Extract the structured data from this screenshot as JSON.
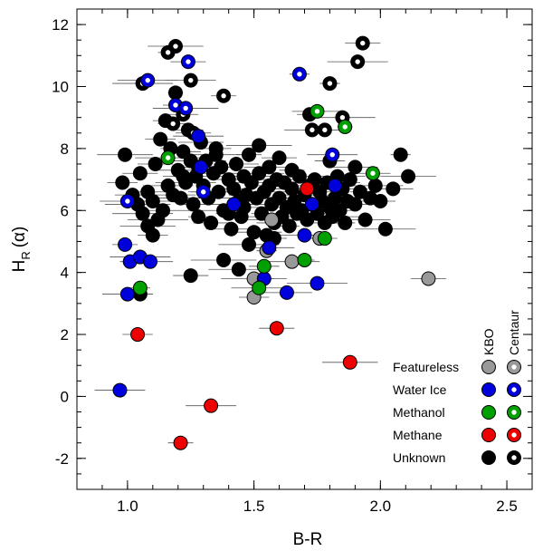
{
  "chart_data": {
    "type": "scatter",
    "title": "",
    "xlabel": "B-R",
    "ylabel": {
      "main": "H",
      "sub": "R",
      "tail": "(α)"
    },
    "xlim": [
      0.8,
      2.6
    ],
    "ylim": [
      -3,
      12.5
    ],
    "xticks": [
      1.0,
      1.5,
      2.0,
      2.5
    ],
    "xtick_labels": [
      "1.0",
      "1.5",
      "2.0",
      "2.5"
    ],
    "yticks": [
      -2,
      0,
      2,
      4,
      6,
      8,
      10,
      12
    ],
    "ytick_labels": [
      "-2",
      "0",
      "2",
      "4",
      "6",
      "8",
      "10",
      "12"
    ],
    "grid": false,
    "legend": {
      "position": "bottom-right",
      "col_headers": [
        "KBO",
        "Centaur"
      ],
      "entries": [
        {
          "label": "Featureless",
          "color": "#999999"
        },
        {
          "label": "Water Ice",
          "color": "#0000dd"
        },
        {
          "label": "Methanol",
          "color": "#00a000"
        },
        {
          "label": "Methane",
          "color": "#ee0000"
        },
        {
          "label": "Unknown",
          "color": "#000000"
        }
      ]
    },
    "series": [
      {
        "name": "Featureless",
        "color": "#999999",
        "kbo": [
          [
            1.5,
            3.8
          ],
          [
            1.5,
            3.2
          ],
          [
            1.55,
            4.7
          ],
          [
            1.57,
            5.7
          ],
          [
            1.65,
            4.35
          ],
          [
            1.76,
            5.1
          ],
          [
            2.19,
            3.8
          ]
        ],
        "centaur": []
      },
      {
        "name": "Water Ice",
        "color": "#0000dd",
        "kbo": [
          [
            0.97,
            0.2
          ],
          [
            0.99,
            4.9
          ],
          [
            1.0,
            3.3
          ],
          [
            1.01,
            4.35
          ],
          [
            1.05,
            4.5
          ],
          [
            1.09,
            4.35
          ],
          [
            1.28,
            8.4
          ],
          [
            1.29,
            7.4
          ],
          [
            1.42,
            6.2
          ],
          [
            1.54,
            3.8
          ],
          [
            1.56,
            4.8
          ],
          [
            1.63,
            3.35
          ],
          [
            1.7,
            5.2
          ],
          [
            1.73,
            6.2
          ],
          [
            1.75,
            3.65
          ],
          [
            1.82,
            6.8
          ]
        ],
        "centaur": [
          [
            1.0,
            6.3
          ],
          [
            1.08,
            10.2
          ],
          [
            1.19,
            9.4
          ],
          [
            1.23,
            9.3
          ],
          [
            1.24,
            10.8
          ],
          [
            1.3,
            6.6
          ],
          [
            1.68,
            10.4
          ],
          [
            1.81,
            7.8
          ]
        ]
      },
      {
        "name": "Methanol",
        "color": "#00a000",
        "kbo": [
          [
            1.05,
            3.5
          ],
          [
            1.52,
            3.5
          ],
          [
            1.54,
            4.2
          ],
          [
            1.7,
            4.4
          ],
          [
            1.78,
            5.1
          ]
        ],
        "centaur": [
          [
            1.16,
            7.7
          ],
          [
            1.75,
            9.2
          ],
          [
            1.86,
            8.7
          ],
          [
            1.97,
            7.2
          ]
        ]
      },
      {
        "name": "Methane",
        "color": "#ee0000",
        "kbo": [
          [
            1.04,
            2.0
          ],
          [
            1.21,
            -1.5
          ],
          [
            1.33,
            -0.3
          ],
          [
            1.59,
            2.2
          ],
          [
            1.71,
            6.7
          ],
          [
            1.88,
            1.1
          ]
        ],
        "centaur": []
      },
      {
        "name": "Unknown",
        "color": "#000000",
        "kbo": [
          [
            0.98,
            6.9
          ],
          [
            0.99,
            7.8
          ],
          [
            1.02,
            6.5
          ],
          [
            1.04,
            6.2
          ],
          [
            1.05,
            7.2
          ],
          [
            1.06,
            5.9
          ],
          [
            1.08,
            6.6
          ],
          [
            1.1,
            6.3
          ],
          [
            1.11,
            7.5
          ],
          [
            1.12,
            5.7
          ],
          [
            1.13,
            8.3
          ],
          [
            1.14,
            6.0
          ],
          [
            1.15,
            8.9
          ],
          [
            1.16,
            6.8
          ],
          [
            1.17,
            8.0
          ],
          [
            1.18,
            6.5
          ],
          [
            1.19,
            9.8
          ],
          [
            1.2,
            7.3
          ],
          [
            1.21,
            6.4
          ],
          [
            1.22,
            7.9
          ],
          [
            1.23,
            6.9
          ],
          [
            1.24,
            8.6
          ],
          [
            1.25,
            7.6
          ],
          [
            1.26,
            6.2
          ],
          [
            1.27,
            7.1
          ],
          [
            1.28,
            5.8
          ],
          [
            1.29,
            8.2
          ],
          [
            1.3,
            6.8
          ],
          [
            1.31,
            7.6
          ],
          [
            1.32,
            6.4
          ],
          [
            1.33,
            5.6
          ],
          [
            1.34,
            7.2
          ],
          [
            1.35,
            8.0
          ],
          [
            1.36,
            6.6
          ],
          [
            1.37,
            7.4
          ],
          [
            1.38,
            6.0
          ],
          [
            1.4,
            7.0
          ],
          [
            1.41,
            5.4
          ],
          [
            1.42,
            6.7
          ],
          [
            1.43,
            7.5
          ],
          [
            1.44,
            6.3
          ],
          [
            1.45,
            5.8
          ],
          [
            1.46,
            7.1
          ],
          [
            1.47,
            6.5
          ],
          [
            1.48,
            4.9
          ],
          [
            1.49,
            6.9
          ],
          [
            1.5,
            5.3
          ],
          [
            1.51,
            6.4
          ],
          [
            1.52,
            7.2
          ],
          [
            1.53,
            5.9
          ],
          [
            1.54,
            6.6
          ],
          [
            1.55,
            5.2
          ],
          [
            1.56,
            6.8
          ],
          [
            1.57,
            6.2
          ],
          [
            1.58,
            5.6
          ],
          [
            1.59,
            7.0
          ],
          [
            1.6,
            6.4
          ],
          [
            1.61,
            5.8
          ],
          [
            1.62,
            6.9
          ],
          [
            1.63,
            6.1
          ],
          [
            1.64,
            5.5
          ],
          [
            1.65,
            6.7
          ],
          [
            1.66,
            6.3
          ],
          [
            1.67,
            5.9
          ],
          [
            1.68,
            7.1
          ],
          [
            1.69,
            6.0
          ],
          [
            1.7,
            6.5
          ],
          [
            1.71,
            5.7
          ],
          [
            1.72,
            6.8
          ],
          [
            1.73,
            6.2
          ],
          [
            1.74,
            7.0
          ],
          [
            1.75,
            5.9
          ],
          [
            1.76,
            6.6
          ],
          [
            1.77,
            6.3
          ],
          [
            1.78,
            5.6
          ],
          [
            1.79,
            6.9
          ],
          [
            1.8,
            6.1
          ],
          [
            1.81,
            5.8
          ],
          [
            1.82,
            6.4
          ],
          [
            1.83,
            7.1
          ],
          [
            1.84,
            6.0
          ],
          [
            1.85,
            6.7
          ],
          [
            1.86,
            5.6
          ],
          [
            1.87,
            6.3
          ],
          [
            1.88,
            7.0
          ],
          [
            1.9,
            6.2
          ],
          [
            1.92,
            6.6
          ],
          [
            1.94,
            5.7
          ],
          [
            1.96,
            6.4
          ],
          [
            1.98,
            6.8
          ],
          [
            2.0,
            6.3
          ],
          [
            2.02,
            5.4
          ],
          [
            2.05,
            6.7
          ],
          [
            2.08,
            7.8
          ],
          [
            2.11,
            7.1
          ],
          [
            1.08,
            5.5
          ],
          [
            1.1,
            5.2
          ],
          [
            1.05,
            3.3
          ],
          [
            1.25,
            3.9
          ],
          [
            1.38,
            4.4
          ],
          [
            1.44,
            4.1
          ],
          [
            1.52,
            8.1
          ],
          [
            1.56,
            7.4
          ],
          [
            1.6,
            7.7
          ],
          [
            1.65,
            7.3
          ],
          [
            1.72,
            9.1
          ],
          [
            1.8,
            7.6
          ],
          [
            1.9,
            7.4
          ],
          [
            1.35,
            7.8
          ],
          [
            1.28,
            7.4
          ],
          [
            1.22,
            7.1
          ],
          [
            1.48,
            7.8
          ],
          [
            1.46,
            6.1
          ],
          [
            1.4,
            5.9
          ],
          [
            1.58,
            5.1
          ]
        ],
        "centaur": [
          [
            1.06,
            10.1
          ],
          [
            1.16,
            11.1
          ],
          [
            1.19,
            11.3
          ],
          [
            1.25,
            10.2
          ],
          [
            1.38,
            9.7
          ],
          [
            1.73,
            8.6
          ],
          [
            1.78,
            8.6
          ],
          [
            1.8,
            10.1
          ],
          [
            1.85,
            9.0
          ],
          [
            1.91,
            10.8
          ],
          [
            1.93,
            11.4
          ],
          [
            1.22,
            9.1
          ],
          [
            1.18,
            8.8
          ],
          [
            1.26,
            8.5
          ]
        ]
      }
    ]
  }
}
